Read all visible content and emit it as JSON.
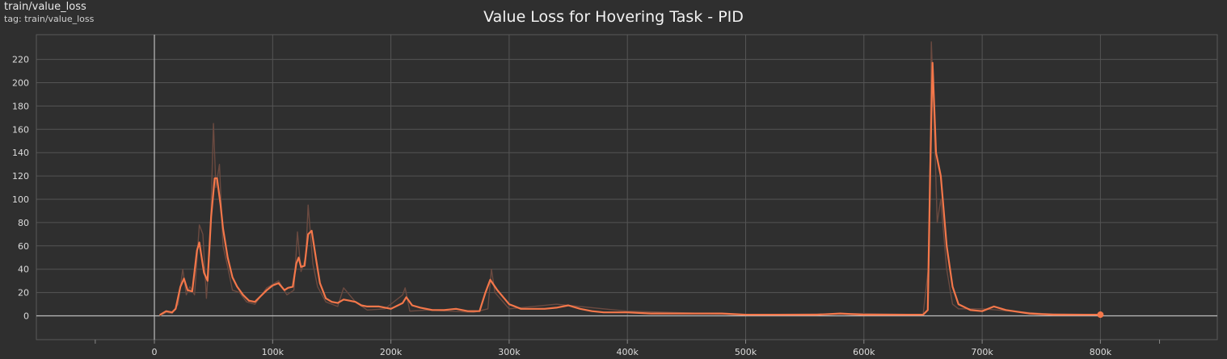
{
  "header": {
    "run_name": "train/value_loss",
    "tag_label": "tag: train/value_loss"
  },
  "chart_data": {
    "type": "line",
    "title": "Value Loss for Hovering Task - PID",
    "xlabel": "",
    "ylabel": "",
    "xlim": [
      -100000,
      900000
    ],
    "ylim": [
      -20,
      235
    ],
    "x_ticks": [
      0,
      100000,
      200000,
      300000,
      400000,
      500000,
      600000,
      700000,
      800000
    ],
    "x_tick_labels": [
      "0",
      "100k",
      "200k",
      "300k",
      "400k",
      "500k",
      "600k",
      "700k",
      "800k"
    ],
    "y_ticks": [
      0,
      20,
      40,
      60,
      80,
      100,
      120,
      140,
      160,
      180,
      200,
      220
    ],
    "y_tick_labels": [
      "0",
      "20",
      "40",
      "60",
      "80",
      "100",
      "120",
      "140",
      "160",
      "180",
      "200",
      "220"
    ],
    "grid": true,
    "colors": {
      "smoothed": "#f4774a",
      "raw": "#6b4a40",
      "background": "#2f2f2f",
      "grid": "#555555"
    },
    "series": [
      {
        "role": "smoothed",
        "x": [
          5000,
          10000,
          15000,
          18000,
          22000,
          25000,
          28000,
          32000,
          36000,
          38000,
          42000,
          45000,
          48000,
          51000,
          53000,
          56000,
          58000,
          62000,
          66000,
          70000,
          75000,
          80000,
          85000,
          90000,
          95000,
          100000,
          105000,
          110000,
          113000,
          117000,
          120000,
          122000,
          124000,
          127000,
          130000,
          133000,
          137000,
          140000,
          145000,
          150000,
          155000,
          160000,
          165000,
          170000,
          175000,
          180000,
          190000,
          200000,
          210000,
          213000,
          218000,
          225000,
          235000,
          245000,
          255000,
          265000,
          275000,
          280000,
          284000,
          290000,
          300000,
          310000,
          320000,
          330000,
          340000,
          350000,
          360000,
          370000,
          380000,
          390000,
          400000,
          420000,
          440000,
          460000,
          480000,
          500000,
          520000,
          540000,
          560000,
          580000,
          600000,
          620000,
          640000,
          650000,
          654000,
          656000,
          658000,
          661000,
          665000,
          670000,
          675000,
          680000,
          690000,
          700000,
          710000,
          720000,
          740000,
          760000,
          780000,
          800000
        ],
        "y": [
          1,
          4,
          3,
          6,
          25,
          32,
          22,
          21,
          56,
          63,
          37,
          30,
          85,
          118,
          118,
          95,
          75,
          50,
          33,
          25,
          18,
          13,
          12,
          17,
          22,
          26,
          28,
          22,
          24,
          25,
          45,
          50,
          42,
          43,
          70,
          73,
          47,
          28,
          15,
          12,
          11,
          14,
          13,
          12,
          9,
          8,
          8,
          6,
          11,
          16,
          9,
          7,
          5,
          5,
          6,
          4,
          4,
          20,
          31,
          22,
          10,
          6,
          6,
          6,
          7,
          9,
          6,
          4,
          3,
          3,
          3,
          2,
          2,
          2,
          2,
          1,
          1,
          1,
          1,
          2,
          1,
          1,
          1,
          1,
          5,
          120,
          217,
          140,
          120,
          60,
          25,
          10,
          5,
          4,
          8,
          5,
          2,
          1,
          1,
          1
        ]
      },
      {
        "role": "raw",
        "x": [
          5000,
          10000,
          15000,
          20000,
          24000,
          27000,
          30000,
          34000,
          38000,
          41000,
          44000,
          47000,
          50000,
          52000,
          55000,
          58000,
          62000,
          66000,
          72000,
          78000,
          85000,
          95000,
          105000,
          112000,
          118000,
          121000,
          124000,
          128000,
          130000,
          134000,
          138000,
          145000,
          155000,
          160000,
          170000,
          180000,
          195000,
          210000,
          212000,
          216000,
          230000,
          250000,
          270000,
          282000,
          285000,
          288000,
          300000,
          340000,
          400000,
          500000,
          600000,
          650000,
          655000,
          657000,
          659000,
          662000,
          665000,
          670000,
          675000,
          680000,
          700000,
          750000,
          800000
        ],
        "y": [
          0,
          3,
          2,
          10,
          40,
          18,
          25,
          18,
          78,
          70,
          15,
          60,
          165,
          110,
          130,
          60,
          42,
          22,
          20,
          12,
          10,
          24,
          30,
          18,
          22,
          72,
          38,
          50,
          95,
          45,
          25,
          12,
          8,
          24,
          12,
          5,
          6,
          18,
          24,
          4,
          5,
          4,
          3,
          6,
          40,
          20,
          6,
          10,
          4,
          1,
          2,
          1,
          45,
          235,
          180,
          80,
          100,
          40,
          10,
          6,
          6,
          2,
          1
        ]
      }
    ]
  }
}
